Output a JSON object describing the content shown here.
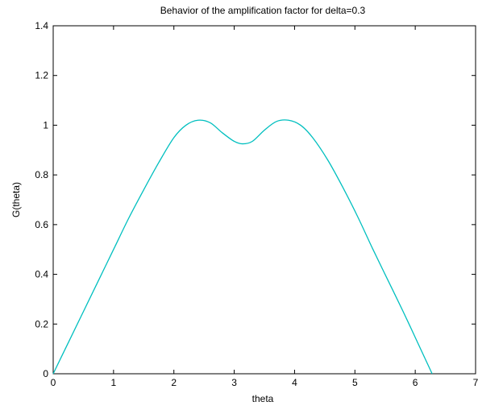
{
  "chart_data": {
    "type": "line",
    "title": "Behavior of the amplification factor for delta=0.3",
    "xlabel": "theta",
    "ylabel": "G(theta)",
    "xlim": [
      0,
      7
    ],
    "ylim": [
      0,
      1.4
    ],
    "xticks": [
      0,
      1,
      2,
      3,
      4,
      5,
      6,
      7
    ],
    "yticks": [
      0,
      0.2,
      0.4,
      0.6,
      0.8,
      1,
      1.2,
      1.4
    ],
    "xtick_labels": [
      "0",
      "1",
      "2",
      "3",
      "4",
      "5",
      "6",
      "7"
    ],
    "ytick_labels": [
      "0",
      "0.2",
      "0.4",
      "0.6",
      "0.8",
      "1",
      "1.2",
      "1.4"
    ],
    "grid": false,
    "line_color": "#00bfbf",
    "series": [
      {
        "x": [
          0,
          0.25,
          0.5,
          0.75,
          1.0,
          1.25,
          1.5,
          1.75,
          2.0,
          2.2,
          2.4,
          2.6,
          2.8,
          3.0,
          3.14,
          3.3,
          3.5,
          3.7,
          3.9,
          4.1,
          4.3,
          4.55,
          4.8,
          5.05,
          5.3,
          5.55,
          5.8,
          6.05,
          6.28
        ],
        "y": [
          0,
          0.125,
          0.25,
          0.375,
          0.5,
          0.625,
          0.74,
          0.85,
          0.95,
          1.0,
          1.02,
          1.01,
          0.97,
          0.935,
          0.925,
          0.935,
          0.98,
          1.015,
          1.02,
          1.0,
          0.95,
          0.86,
          0.75,
          0.63,
          0.5,
          0.375,
          0.25,
          0.12,
          0
        ]
      }
    ]
  }
}
